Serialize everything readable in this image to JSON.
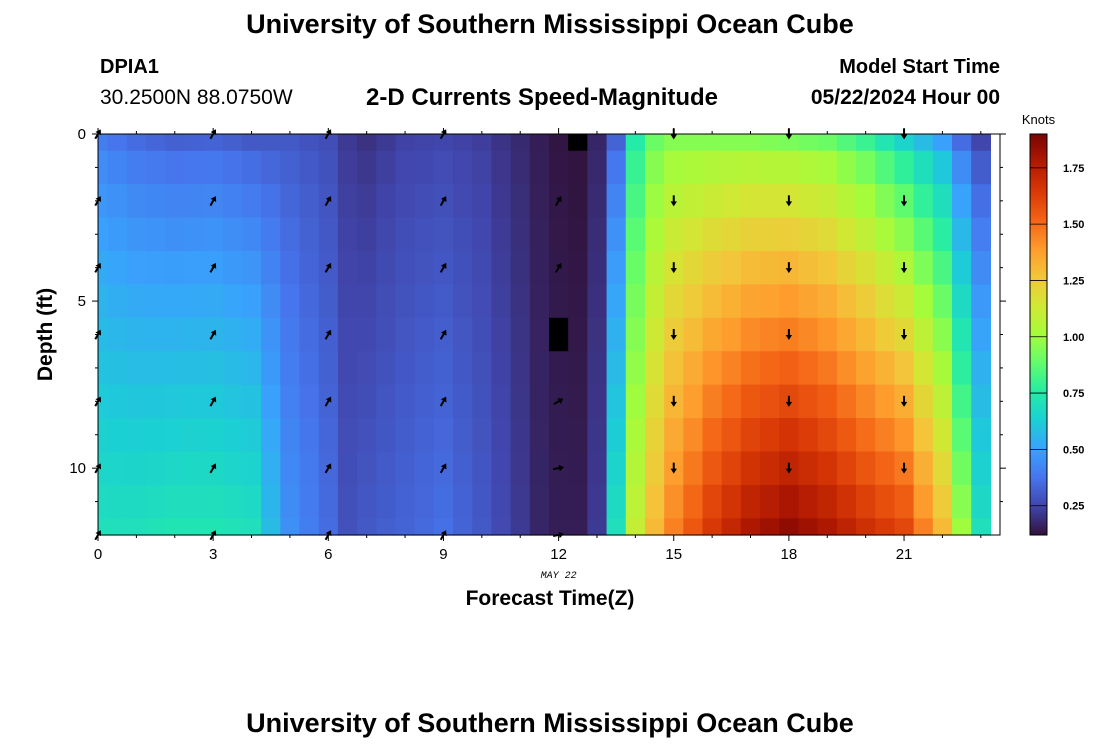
{
  "header": {
    "title": "University of Southern Mississippi Ocean Cube",
    "station_id": "DPIA1",
    "coordinates": "30.2500N  88.0750W",
    "chart_title": "2-D Currents Speed-Magnitude",
    "model_start_label": "Model Start Time",
    "model_start_value": "05/22/2024 Hour 00"
  },
  "footer": {
    "title": "University of Southern Mississippi Ocean Cube"
  },
  "colors": {
    "colormap": [
      "#30123b",
      "#4145ab",
      "#4675ed",
      "#39a2fc",
      "#1bcfd4",
      "#24eca6",
      "#61fc6c",
      "#a4fc3b",
      "#d1e834",
      "#f3c63a",
      "#fe9b2d",
      "#f36315",
      "#d93806",
      "#b11901",
      "#7a0403"
    ],
    "arrow": "#000000",
    "missing": "#000000"
  },
  "chart_data": {
    "type": "heatmap",
    "xlabel": "Forecast Time(Z)",
    "ylabel": "Depth (ft)",
    "date_label": "MAY 22",
    "xlim": [
      0,
      23.5
    ],
    "ylim": [
      0,
      12
    ],
    "y_inverted": true,
    "xticks": [
      0,
      3,
      6,
      9,
      12,
      15,
      18,
      21
    ],
    "yticks": [
      0,
      5,
      10
    ],
    "colorbar": {
      "title": "Knots",
      "min": 0.12,
      "max": 1.9,
      "ticks": [
        "0.25",
        "0.50",
        "0.75",
        "1.00",
        "1.25",
        "1.50",
        "1.75"
      ]
    },
    "hours": [
      0,
      0.5,
      1,
      1.5,
      2,
      2.5,
      3,
      3.5,
      4,
      4.5,
      5,
      5.5,
      6,
      6.5,
      7,
      7.5,
      8,
      8.5,
      9,
      9.5,
      10,
      10.5,
      11,
      11.5,
      12,
      12.5,
      13,
      13.5,
      14,
      14.5,
      15,
      15.5,
      16,
      16.5,
      17,
      17.5,
      18,
      18.5,
      19,
      19.5,
      20,
      20.5,
      21,
      21.5,
      22,
      22.5,
      23
    ],
    "depths_ft": [
      0,
      1,
      2,
      3,
      4,
      5,
      6,
      7,
      8,
      9,
      10,
      11,
      12
    ],
    "speed_profile": {
      "hour": [
        0,
        1,
        2,
        3,
        4,
        5,
        6,
        6.5,
        7,
        8,
        9,
        10,
        11,
        11.5,
        12,
        12.5,
        13,
        13.5,
        14,
        14.5,
        15,
        16,
        17,
        18,
        19,
        20,
        21,
        22,
        22.5,
        23
      ],
      "surface_knots": [
        0.4,
        0.35,
        0.32,
        0.33,
        0.3,
        0.3,
        0.27,
        0.22,
        0.2,
        0.24,
        0.25,
        0.23,
        0.18,
        0.15,
        0.13,
        0.12,
        0.17,
        0.33,
        0.75,
        0.9,
        0.95,
        0.95,
        0.95,
        0.93,
        0.9,
        0.8,
        0.65,
        0.5,
        0.35,
        0.25
      ],
      "bottom_knots": [
        0.7,
        0.7,
        0.72,
        0.72,
        0.7,
        0.45,
        0.35,
        0.28,
        0.3,
        0.33,
        0.36,
        0.3,
        0.22,
        0.17,
        0.15,
        0.15,
        0.22,
        0.7,
        1.1,
        1.3,
        1.45,
        1.65,
        1.78,
        1.85,
        1.78,
        1.68,
        1.6,
        1.3,
        1.0,
        0.7
      ]
    },
    "missing_cells": [
      {
        "hour": 12.5,
        "depth_from": 0,
        "depth_to": 0.5
      },
      {
        "hour": 12,
        "depth_from": 5.5,
        "depth_to": 6.5
      }
    ],
    "vectors": [
      {
        "hours": [
          0,
          3,
          6,
          9
        ],
        "depths_ft": [
          0,
          2,
          4,
          6,
          8,
          10,
          12
        ],
        "direction_deg": 30
      },
      {
        "hours": [
          12
        ],
        "depths_ft": [
          2,
          4,
          6
        ],
        "direction_deg": 30
      },
      {
        "hours": [
          12
        ],
        "depths_ft": [
          8
        ],
        "direction_deg": 60
      },
      {
        "hours": [
          12
        ],
        "depths_ft": [
          10,
          12
        ],
        "direction_deg": 80
      },
      {
        "hours": [
          15,
          18,
          21
        ],
        "depths_ft": [
          0,
          2,
          4,
          6,
          8,
          10
        ],
        "direction_deg": 180
      }
    ]
  }
}
